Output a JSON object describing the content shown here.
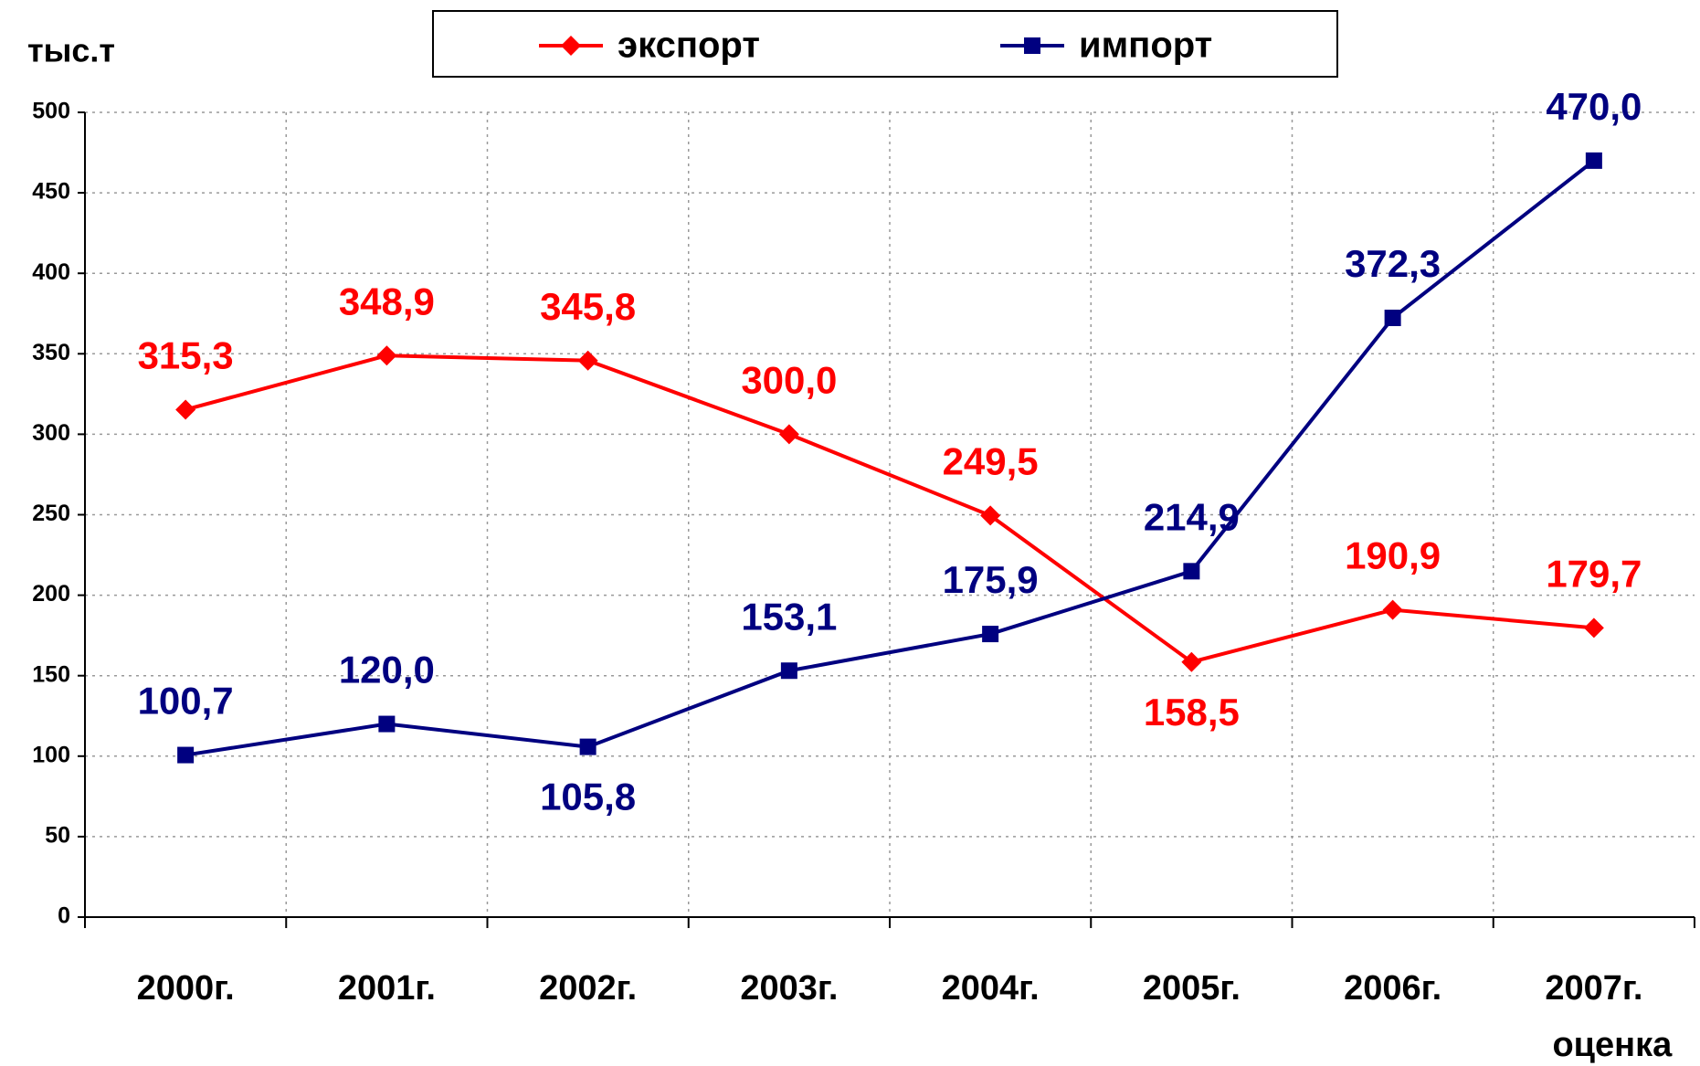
{
  "chart_data": {
    "type": "line",
    "y_label": "тыс.т",
    "categories": [
      "2000г.",
      "2001г.",
      "2002г.",
      "2003г.",
      "2004г.",
      "2005г.",
      "2006г.",
      "2007г."
    ],
    "category_note": "оценка",
    "series": [
      {
        "name": "экспорт",
        "color": "#ff0000",
        "marker": "diamond",
        "values": [
          315.3,
          348.9,
          345.8,
          300.0,
          249.5,
          158.5,
          190.9,
          179.7
        ],
        "value_labels": [
          "315,3",
          "348,9",
          "345,8",
          "300,0",
          "249,5",
          "158,5",
          "190,9",
          "179,7"
        ]
      },
      {
        "name": "импорт",
        "color": "#000080",
        "marker": "square",
        "values": [
          100.7,
          120.0,
          105.8,
          153.1,
          175.9,
          214.9,
          372.3,
          470.0
        ],
        "value_labels": [
          "100,7",
          "120,0",
          "105,8",
          "153,1",
          "175,9",
          "214,9",
          "372,3",
          "470,0"
        ]
      }
    ],
    "ylim": [
      0,
      500
    ],
    "yticks": [
      0,
      50,
      100,
      150,
      200,
      250,
      300,
      350,
      400,
      450,
      500
    ],
    "grid": true,
    "legend": "top"
  }
}
